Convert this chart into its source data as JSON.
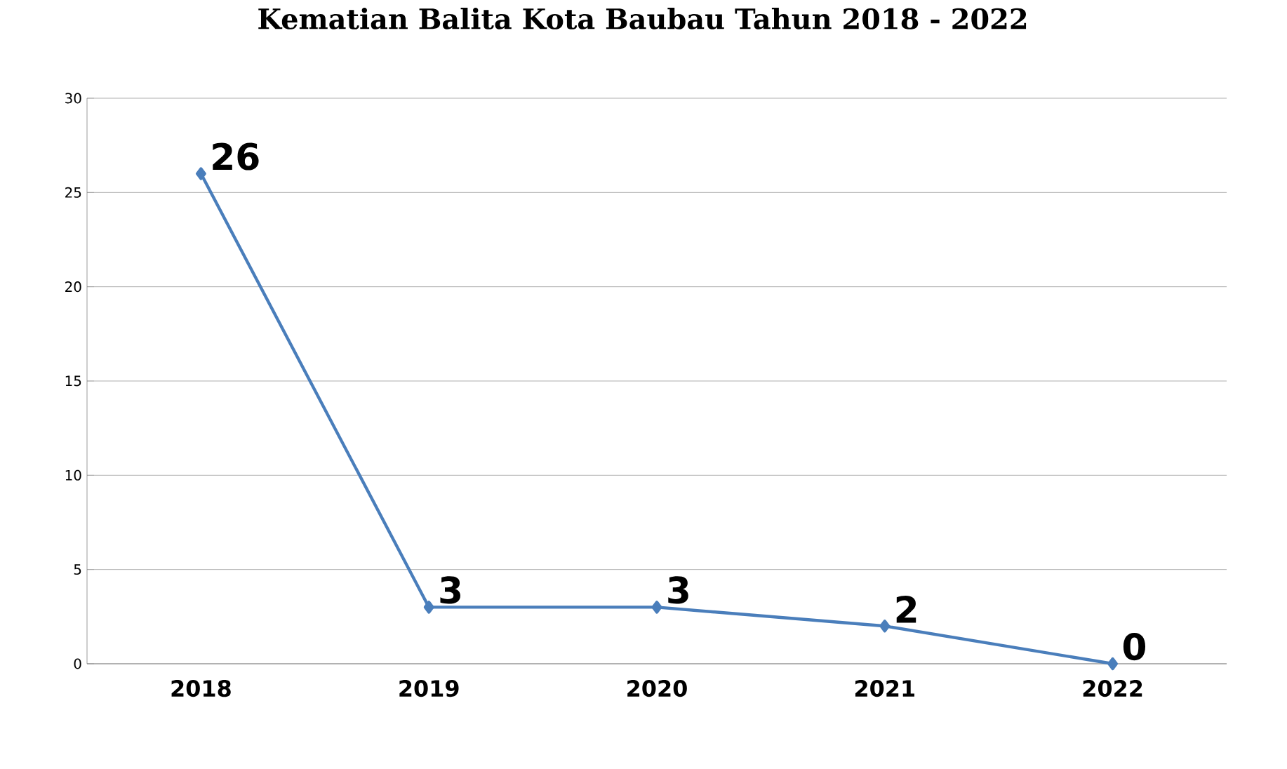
{
  "chart_data": {
    "type": "line",
    "title": "Kematian Balita Kota Baubau Tahun 2018 - 2022",
    "categories": [
      "2018",
      "2019",
      "2020",
      "2021",
      "2022"
    ],
    "series": [
      {
        "color": "#4a7ebb",
        "values": [
          26,
          3,
          3,
          2,
          0
        ]
      }
    ],
    "ylim": [
      0,
      30
    ],
    "yticks": [
      0,
      5,
      10,
      15,
      20,
      25,
      30
    ],
    "grid": "y",
    "marker": "diamond",
    "line_style": "solid",
    "data_labels": true
  }
}
